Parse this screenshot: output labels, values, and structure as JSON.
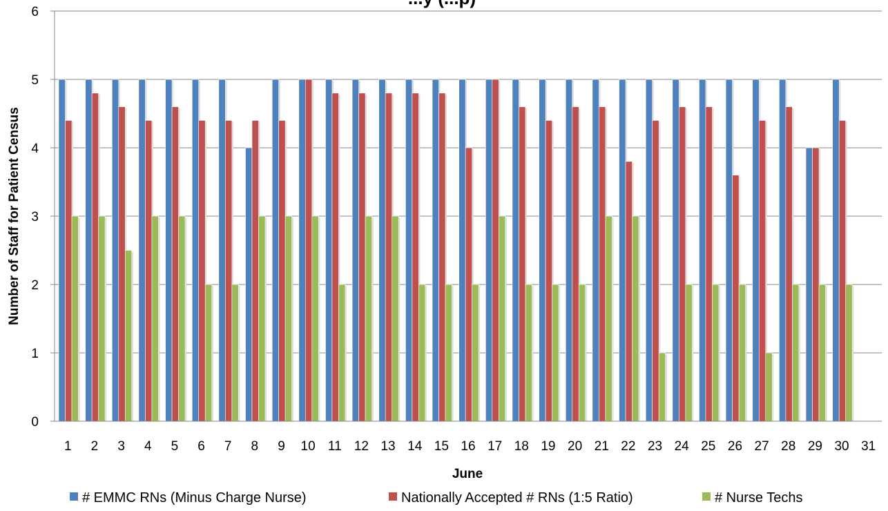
{
  "chart_data": {
    "type": "bar",
    "title": "...y (...p)",
    "xlabel": "June",
    "ylabel": "Number of Staff for Patient Census",
    "ylim": [
      0,
      6
    ],
    "yticks": [
      0,
      1,
      2,
      3,
      4,
      5,
      6
    ],
    "grid": true,
    "legend_position": "bottom",
    "categories": [
      "1",
      "2",
      "3",
      "4",
      "5",
      "6",
      "7",
      "8",
      "9",
      "10",
      "11",
      "12",
      "13",
      "14",
      "15",
      "16",
      "17",
      "18",
      "19",
      "20",
      "21",
      "22",
      "23",
      "24",
      "25",
      "26",
      "27",
      "28",
      "29",
      "30",
      "31"
    ],
    "series": [
      {
        "name": "# EMMC RNs (Minus Charge Nurse)",
        "color": "#4f81bd",
        "values": [
          5,
          5,
          5,
          5,
          5,
          5,
          5,
          4,
          5,
          5,
          5,
          5,
          5,
          5,
          5,
          5,
          5,
          5,
          5,
          5,
          5,
          5,
          5,
          5,
          5,
          5,
          5,
          5,
          4,
          5,
          null
        ]
      },
      {
        "name": "Nationally Accepted # RNs (1:5 Ratio)",
        "color": "#c0504d",
        "values": [
          4.4,
          4.8,
          4.6,
          4.4,
          4.6,
          4.4,
          4.4,
          4.4,
          4.4,
          5,
          4.8,
          4.8,
          4.8,
          4.8,
          4.8,
          4,
          5,
          4.6,
          4.4,
          4.6,
          4.6,
          3.8,
          4.4,
          4.6,
          4.6,
          3.6,
          4.4,
          4.6,
          4,
          4.4,
          null
        ]
      },
      {
        "name": "# Nurse Techs",
        "color": "#9bbb59",
        "values": [
          3,
          3,
          2.5,
          3,
          3,
          2,
          2,
          3,
          3,
          3,
          2,
          3,
          3,
          2,
          2,
          2,
          3,
          2,
          2,
          2,
          3,
          3,
          1,
          2,
          2,
          2,
          1,
          2,
          2,
          2,
          null
        ]
      }
    ]
  }
}
